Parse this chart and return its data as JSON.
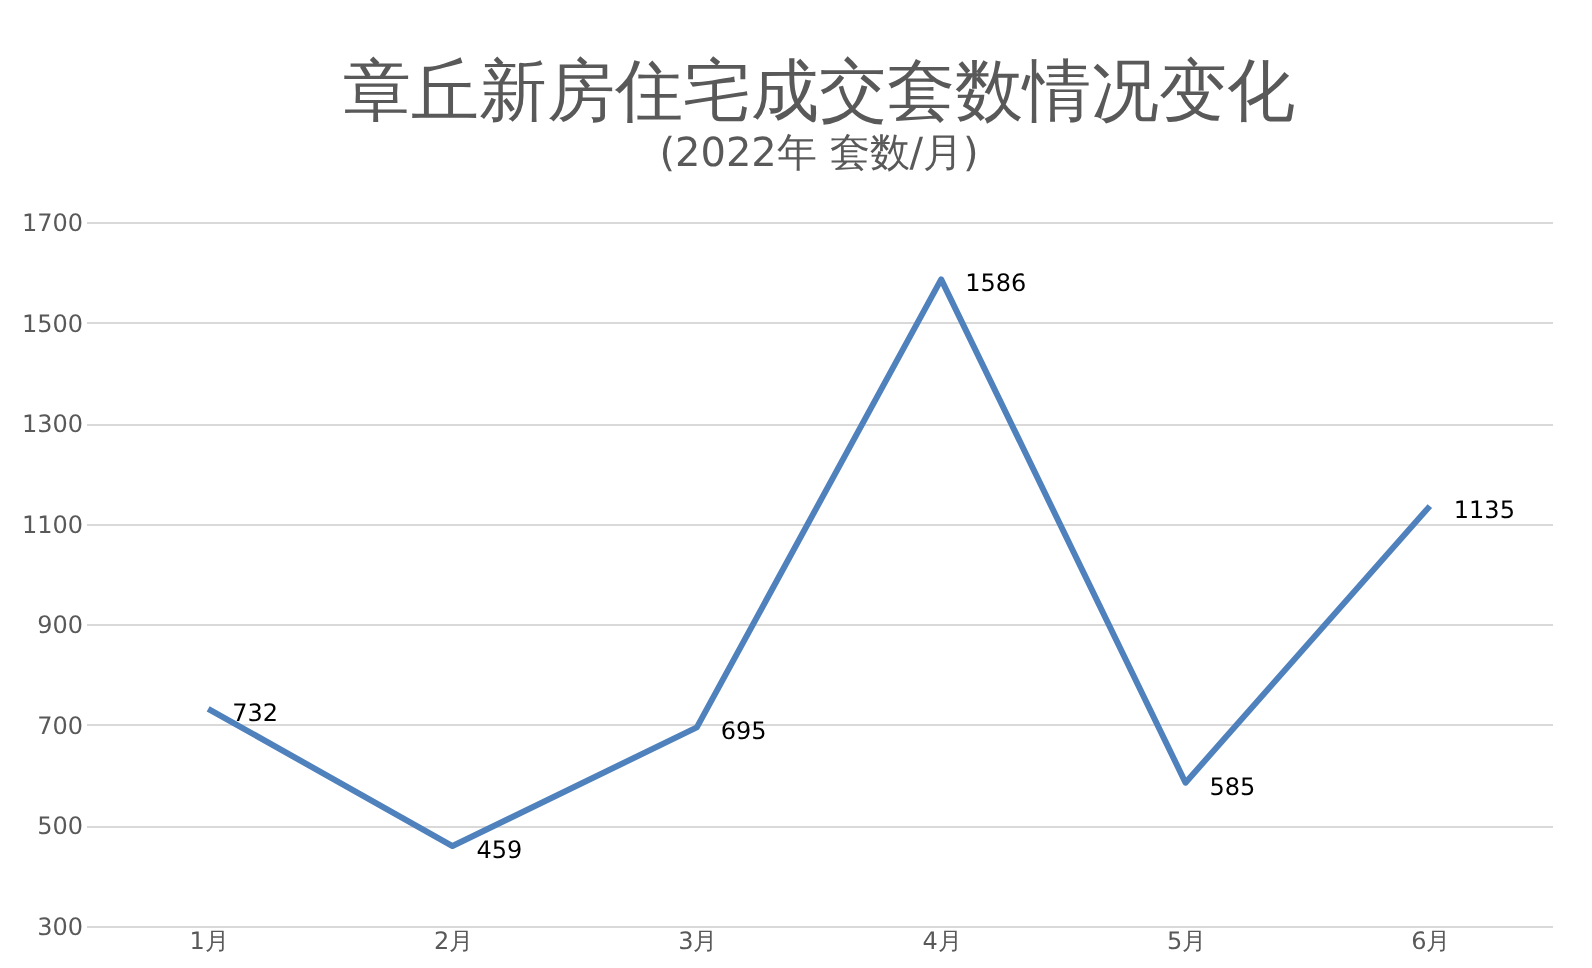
{
  "chart_data": {
    "type": "line",
    "title": "章丘新房住宅成交套数情况变化",
    "subtitle": "(2022年 套数/月)",
    "categories": [
      "1月",
      "2月",
      "3月",
      "4月",
      "5月",
      "6月"
    ],
    "series": [
      {
        "color": "#4f81bd",
        "values": [
          732,
          459,
          695,
          1586,
          585,
          1135
        ]
      }
    ],
    "ylim": [
      300,
      1700
    ],
    "yticks": [
      300,
      500,
      700,
      900,
      1100,
      1300,
      1500,
      1700
    ],
    "grid": "y",
    "data_labels": true
  }
}
